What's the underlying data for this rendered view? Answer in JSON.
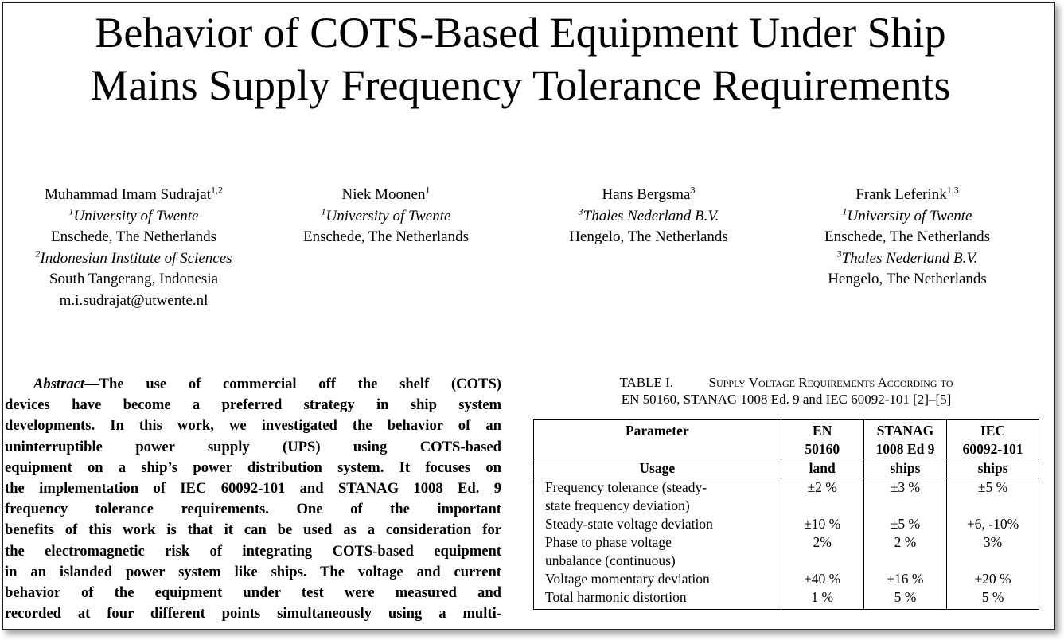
{
  "title": {
    "line1": "Behavior of COTS-Based Equipment Under Ship",
    "line2": "Mains Supply Frequency Tolerance Requirements"
  },
  "authors": [
    {
      "name": "Muhammad Imam Sudrajat",
      "name_sup": "1,2",
      "lines": [
        {
          "sup": "1",
          "text": "University of Twente",
          "italic": true
        },
        {
          "sup": "",
          "text": "Enschede, The Netherlands",
          "italic": false
        },
        {
          "sup": "2",
          "text": "Indonesian Institute of Sciences",
          "italic": true
        },
        {
          "sup": "",
          "text": "South Tangerang, Indonesia",
          "italic": false
        }
      ],
      "email": "m.i.sudrajat@utwente.nl"
    },
    {
      "name": "Niek Moonen",
      "name_sup": "1",
      "lines": [
        {
          "sup": "1",
          "text": "University of Twente",
          "italic": true
        },
        {
          "sup": "",
          "text": "Enschede, The Netherlands",
          "italic": false
        }
      ]
    },
    {
      "name": "Hans Bergsma",
      "name_sup": "3",
      "lines": [
        {
          "sup": "3",
          "text": "Thales Nederland B.V.",
          "italic": true
        },
        {
          "sup": "",
          "text": "Hengelo, The Netherlands",
          "italic": false
        }
      ]
    },
    {
      "name": "Frank Leferink",
      "name_sup": "1,3",
      "lines": [
        {
          "sup": "1",
          "text": "University of Twente",
          "italic": true
        },
        {
          "sup": "",
          "text": "Enschede, The Netherlands",
          "italic": false
        },
        {
          "sup": "3",
          "text": "Thales Nederland B.V.",
          "italic": true
        },
        {
          "sup": "",
          "text": "Hengelo, The Netherlands",
          "italic": false
        }
      ]
    }
  ],
  "abstract": {
    "lead": "Abstract",
    "lines": [
      "—The use of commercial off the shelf (COTS)",
      "devices have become a preferred strategy in ship system",
      "developments. In this work, we investigated the behavior of an",
      "uninterruptible power supply (UPS) using COTS-based",
      "equipment on a ship’s power distribution system. It focuses on",
      "the implementation of IEC 60092-101 and STANAG 1008 Ed. 9",
      "frequency tolerance requirements. One of the important",
      "benefits of this work is that it can be used as a consideration for",
      "the electromagnetic risk of integrating COTS-based equipment",
      "in an islanded power system like ships. The voltage and current",
      "behavior of the equipment under test were measured and",
      "recorded at four different points simultaneously using a multi-"
    ]
  },
  "table": {
    "caption_label": "TABLE I.",
    "caption_line1": "Supply Voltage Requirements According to",
    "caption_line2": "EN 50160, STANAG 1008 Ed. 9 and IEC 60092-101 [2]–[5]",
    "headers": [
      [
        "Parameter"
      ],
      [
        "EN",
        "50160"
      ],
      [
        "STANAG",
        "1008 Ed 9"
      ],
      [
        "IEC",
        "60092-101"
      ]
    ],
    "usage": [
      "Usage",
      "land",
      "ships",
      "ships"
    ],
    "rows": [
      {
        "param": [
          "Frequency tolerance (steady-",
          "state frequency deviation)"
        ],
        "values": [
          "±2 %",
          "±3 %",
          "±5 %"
        ]
      },
      {
        "param": [
          "Steady-state voltage deviation"
        ],
        "values": [
          "±10 %",
          "±5 %",
          "+6, -10%"
        ]
      },
      {
        "param": [
          "Phase to phase voltage",
          "unbalance (continuous)"
        ],
        "values": [
          "2%",
          "2 %",
          "3%"
        ]
      },
      {
        "param": [
          "Voltage momentary deviation"
        ],
        "values": [
          "±40 %",
          "±16 %",
          "±20 %"
        ]
      },
      {
        "param": [
          "Total harmonic distortion"
        ],
        "values": [
          "1 %",
          "5 %",
          "5 %"
        ]
      }
    ]
  }
}
